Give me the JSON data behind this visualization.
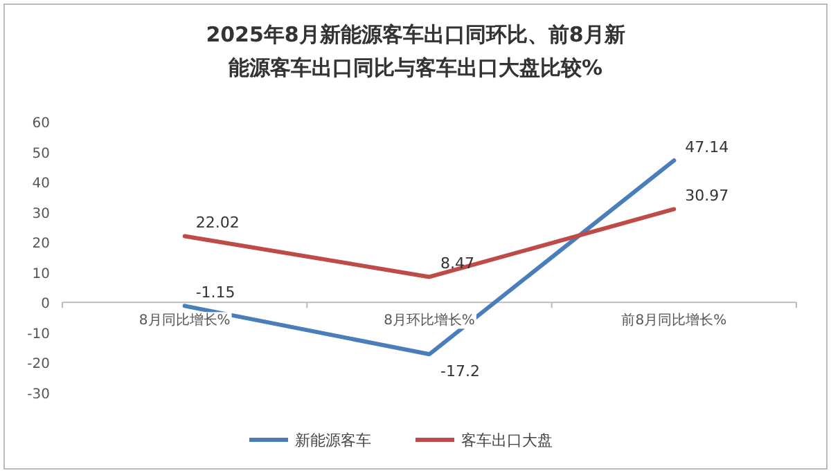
{
  "chart_data": {
    "type": "line",
    "title": "2025年8月新能源客车出口同环比、前8月新能源客车出口同比与客车出口大盘比较%",
    "categories": [
      "8月同比增长%",
      "8月环比增长%",
      "前8月同比增长%"
    ],
    "series": [
      {
        "name": "新能源客车",
        "color": "#4a7ebb",
        "values": [
          -1.15,
          -17.2,
          47.14
        ]
      },
      {
        "name": "客车出口大盘",
        "color": "#be4b48",
        "values": [
          22.02,
          8.47,
          30.97
        ]
      }
    ],
    "ylim": [
      -30,
      60
    ],
    "yticks": [
      -30,
      -20,
      -10,
      0,
      10,
      20,
      30,
      40,
      50,
      60
    ],
    "data_labels": true,
    "legend": "bottom",
    "marker": "none",
    "line_style": "solid"
  }
}
